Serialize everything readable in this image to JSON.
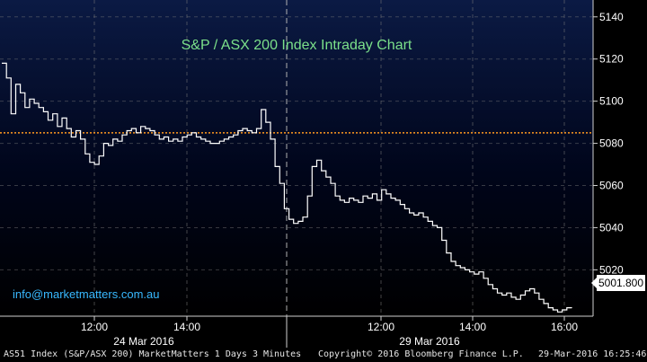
{
  "chart_data": {
    "type": "line",
    "title": "S&P / ASX 200 Index Intraday Chart",
    "series": [
      {
        "values": [
          5118,
          5111,
          5094,
          5108,
          5104,
          5097,
          5101,
          5099,
          5097,
          5095,
          5091,
          5094,
          5088,
          5092,
          5087,
          5083,
          5086,
          5082,
          5075,
          5071,
          5070,
          5074,
          5080,
          5079,
          5082,
          5081,
          5084,
          5086,
          5087,
          5085,
          5088,
          5087,
          5086,
          5084,
          5082,
          5083,
          5081,
          5082,
          5081,
          5083,
          5084,
          5085,
          5083,
          5082,
          5081,
          5080,
          5080,
          5081,
          5082,
          5083,
          5084,
          5086,
          5087,
          5086,
          5085,
          5087,
          5096,
          5090,
          5082,
          5069,
          5061,
          5049,
          5044,
          5042,
          5043,
          5045,
          5055,
          5069,
          5072,
          5067,
          5064,
          5061,
          5055,
          5053,
          5052,
          5054,
          5053,
          5052,
          5055,
          5054,
          5056,
          5053,
          5058,
          5056,
          5054,
          5053,
          5051,
          5049,
          5047,
          5046,
          5047,
          5045,
          5043,
          5041,
          5040,
          5034,
          5028,
          5024,
          5022,
          5021,
          5020,
          5019,
          5018,
          5019,
          5016,
          5013,
          5011,
          5009,
          5008,
          5009,
          5007,
          5006,
          5008,
          5010,
          5011,
          5009,
          5006,
          5004,
          5002,
          5001,
          5000,
          5001,
          5002,
          5001.8
        ]
      }
    ],
    "reference_line": 5085,
    "last_value": "5001.800",
    "ylim": [
      4998,
      5148
    ],
    "y_ticks": [
      5020,
      5040,
      5060,
      5080,
      5100,
      5120,
      5140
    ],
    "y_tick_labels": [
      "5020",
      "5040",
      "5060",
      "5080",
      "5100",
      "5120",
      "5140"
    ],
    "x_tick_labels": [
      "12:00",
      "14:00",
      "12:00",
      "14:00",
      "16:00"
    ],
    "session_labels": [
      "24 Mar 2016",
      "29 Mar 2016"
    ],
    "grid": true,
    "colors": {
      "line": "#ffffff",
      "reference_line": "#ff9a1f",
      "title": "#7be08a",
      "website": "#38b9ff",
      "grid": "#7a7a7a"
    }
  },
  "overlay": {
    "title": "S&P / ASX 200 Index Intraday Chart",
    "website": "info@marketmatters.com.au"
  },
  "footer": {
    "left": "AS51 Index (S&P/ASX 200) MarketMatters 1 Days 3 Minutes",
    "center": "Copyright© 2016 Bloomberg Finance L.P.",
    "right": "29-Mar-2016 16:25:46"
  }
}
